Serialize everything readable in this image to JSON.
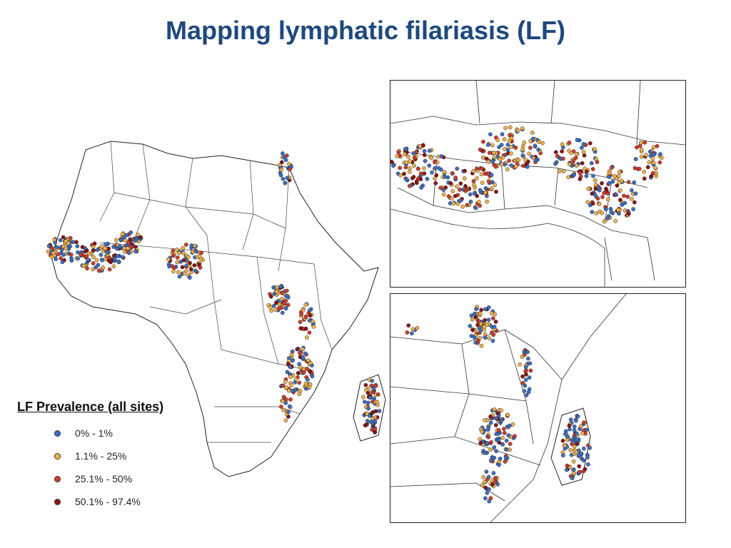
{
  "title": "Mapping lymphatic filariasis (LF)",
  "legend": {
    "title": "LF Prevalence (all sites)",
    "items": [
      {
        "label": "0% - 1%",
        "color": "#3d6fc4"
      },
      {
        "label": "1.1% - 25%",
        "color": "#f2b24a"
      },
      {
        "label": "25.1% - 50%",
        "color": "#d23a2a"
      },
      {
        "label": "50.1% - 97.4%",
        "color": "#8b1414"
      }
    ]
  }
}
